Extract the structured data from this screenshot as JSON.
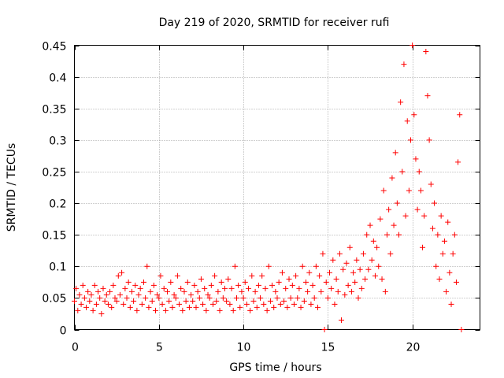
{
  "chart_data": {
    "type": "scatter",
    "title": "Day 219 of 2020, SRMTID for receiver rufi",
    "xlabel": "GPS time / hours",
    "ylabel": "SRMTID / TECUs",
    "xlim": [
      0,
      24
    ],
    "ylim": [
      0,
      0.45
    ],
    "xticks": [
      0,
      5,
      10,
      15,
      20
    ],
    "xtick_labels": [
      "0",
      "5",
      "10",
      "15",
      "20"
    ],
    "yticks": [
      0,
      0.05,
      0.1,
      0.15,
      0.2,
      0.25,
      0.3,
      0.35,
      0.4,
      0.45
    ],
    "ytick_labels": [
      "0",
      "0.05",
      "0.1",
      "0.15",
      "0.2",
      "0.25",
      "0.3",
      "0.35",
      "0.4",
      "0.45"
    ],
    "grid": true,
    "marker": "plus",
    "series": [
      {
        "name": "SRMTID",
        "color": "#ff0000",
        "points": [
          [
            0.0,
            0.045
          ],
          [
            0.1,
            0.065
          ],
          [
            0.2,
            0.03
          ],
          [
            0.3,
            0.055
          ],
          [
            0.4,
            0.04
          ],
          [
            0.5,
            0.07
          ],
          [
            0.6,
            0.05
          ],
          [
            0.7,
            0.035
          ],
          [
            0.8,
            0.06
          ],
          [
            0.9,
            0.045
          ],
          [
            1.0,
            0.055
          ],
          [
            1.1,
            0.03
          ],
          [
            1.2,
            0.07
          ],
          [
            1.3,
            0.04
          ],
          [
            1.4,
            0.06
          ],
          [
            1.5,
            0.05
          ],
          [
            1.6,
            0.025
          ],
          [
            1.7,
            0.065
          ],
          [
            1.8,
            0.045
          ],
          [
            1.9,
            0.055
          ],
          [
            2.0,
            0.04
          ],
          [
            2.1,
            0.06
          ],
          [
            2.2,
            0.035
          ],
          [
            2.3,
            0.07
          ],
          [
            2.4,
            0.05
          ],
          [
            2.5,
            0.045
          ],
          [
            2.6,
            0.085
          ],
          [
            2.7,
            0.055
          ],
          [
            2.8,
            0.09
          ],
          [
            2.9,
            0.04
          ],
          [
            3.0,
            0.065
          ],
          [
            3.1,
            0.05
          ],
          [
            3.2,
            0.075
          ],
          [
            3.3,
            0.035
          ],
          [
            3.4,
            0.06
          ],
          [
            3.5,
            0.045
          ],
          [
            3.6,
            0.07
          ],
          [
            3.7,
            0.03
          ],
          [
            3.8,
            0.055
          ],
          [
            3.9,
            0.065
          ],
          [
            4.0,
            0.04
          ],
          [
            4.1,
            0.075
          ],
          [
            4.2,
            0.05
          ],
          [
            4.3,
            0.1
          ],
          [
            4.4,
            0.035
          ],
          [
            4.5,
            0.06
          ],
          [
            4.6,
            0.045
          ],
          [
            4.7,
            0.07
          ],
          [
            4.8,
            0.03
          ],
          [
            4.9,
            0.055
          ],
          [
            5.0,
            0.05
          ],
          [
            5.1,
            0.085
          ],
          [
            5.2,
            0.04
          ],
          [
            5.3,
            0.065
          ],
          [
            5.4,
            0.03
          ],
          [
            5.5,
            0.06
          ],
          [
            5.6,
            0.045
          ],
          [
            5.7,
            0.075
          ],
          [
            5.8,
            0.035
          ],
          [
            5.9,
            0.055
          ],
          [
            6.0,
            0.05
          ],
          [
            6.1,
            0.085
          ],
          [
            6.2,
            0.04
          ],
          [
            6.3,
            0.065
          ],
          [
            6.4,
            0.03
          ],
          [
            6.5,
            0.06
          ],
          [
            6.6,
            0.045
          ],
          [
            6.7,
            0.075
          ],
          [
            6.8,
            0.035
          ],
          [
            6.9,
            0.055
          ],
          [
            7.0,
            0.045
          ],
          [
            7.1,
            0.07
          ],
          [
            7.2,
            0.035
          ],
          [
            7.3,
            0.06
          ],
          [
            7.4,
            0.05
          ],
          [
            7.5,
            0.08
          ],
          [
            7.6,
            0.04
          ],
          [
            7.7,
            0.065
          ],
          [
            7.8,
            0.03
          ],
          [
            7.9,
            0.055
          ],
          [
            8.0,
            0.05
          ],
          [
            8.1,
            0.07
          ],
          [
            8.2,
            0.04
          ],
          [
            8.3,
            0.085
          ],
          [
            8.4,
            0.045
          ],
          [
            8.5,
            0.06
          ],
          [
            8.6,
            0.03
          ],
          [
            8.7,
            0.075
          ],
          [
            8.8,
            0.05
          ],
          [
            8.9,
            0.065
          ],
          [
            9.0,
            0.045
          ],
          [
            9.1,
            0.08
          ],
          [
            9.2,
            0.04
          ],
          [
            9.3,
            0.065
          ],
          [
            9.4,
            0.03
          ],
          [
            9.5,
            0.1
          ],
          [
            9.6,
            0.05
          ],
          [
            9.7,
            0.07
          ],
          [
            9.8,
            0.035
          ],
          [
            9.9,
            0.06
          ],
          [
            10.0,
            0.05
          ],
          [
            10.1,
            0.075
          ],
          [
            10.2,
            0.04
          ],
          [
            10.3,
            0.065
          ],
          [
            10.4,
            0.03
          ],
          [
            10.5,
            0.085
          ],
          [
            10.6,
            0.045
          ],
          [
            10.7,
            0.06
          ],
          [
            10.8,
            0.035
          ],
          [
            10.9,
            0.07
          ],
          [
            11.0,
            0.05
          ],
          [
            11.1,
            0.085
          ],
          [
            11.2,
            0.04
          ],
          [
            11.3,
            0.065
          ],
          [
            11.4,
            0.03
          ],
          [
            11.5,
            0.1
          ],
          [
            11.6,
            0.045
          ],
          [
            11.7,
            0.07
          ],
          [
            11.8,
            0.035
          ],
          [
            11.9,
            0.06
          ],
          [
            12.0,
            0.05
          ],
          [
            12.1,
            0.075
          ],
          [
            12.2,
            0.04
          ],
          [
            12.3,
            0.09
          ],
          [
            12.4,
            0.045
          ],
          [
            12.5,
            0.065
          ],
          [
            12.6,
            0.035
          ],
          [
            12.7,
            0.08
          ],
          [
            12.8,
            0.05
          ],
          [
            12.9,
            0.07
          ],
          [
            13.0,
            0.04
          ],
          [
            13.1,
            0.085
          ],
          [
            13.2,
            0.05
          ],
          [
            13.3,
            0.065
          ],
          [
            13.4,
            0.035
          ],
          [
            13.5,
            0.1
          ],
          [
            13.6,
            0.045
          ],
          [
            13.7,
            0.075
          ],
          [
            13.8,
            0.06
          ],
          [
            13.9,
            0.09
          ],
          [
            14.0,
            0.04
          ],
          [
            14.1,
            0.07
          ],
          [
            14.2,
            0.05
          ],
          [
            14.3,
            0.1
          ],
          [
            14.4,
            0.035
          ],
          [
            14.5,
            0.085
          ],
          [
            14.6,
            0.06
          ],
          [
            14.7,
            0.12
          ],
          [
            14.8,
            0.0
          ],
          [
            14.9,
            0.075
          ],
          [
            15.0,
            0.05
          ],
          [
            15.1,
            0.09
          ],
          [
            15.2,
            0.065
          ],
          [
            15.3,
            0.11
          ],
          [
            15.4,
            0.04
          ],
          [
            15.5,
            0.08
          ],
          [
            15.6,
            0.06
          ],
          [
            15.7,
            0.12
          ],
          [
            15.8,
            0.015
          ],
          [
            15.9,
            0.095
          ],
          [
            16.0,
            0.055
          ],
          [
            16.1,
            0.105
          ],
          [
            16.2,
            0.07
          ],
          [
            16.3,
            0.13
          ],
          [
            16.4,
            0.06
          ],
          [
            16.5,
            0.09
          ],
          [
            16.6,
            0.075
          ],
          [
            16.7,
            0.11
          ],
          [
            16.8,
            0.05
          ],
          [
            16.9,
            0.095
          ],
          [
            17.0,
            0.065
          ],
          [
            17.1,
            0.12
          ],
          [
            17.2,
            0.08
          ],
          [
            17.3,
            0.15
          ],
          [
            17.4,
            0.095
          ],
          [
            17.5,
            0.165
          ],
          [
            17.6,
            0.11
          ],
          [
            17.7,
            0.14
          ],
          [
            17.8,
            0.085
          ],
          [
            17.9,
            0.13
          ],
          [
            18.0,
            0.1
          ],
          [
            18.1,
            0.175
          ],
          [
            18.2,
            0.08
          ],
          [
            18.3,
            0.22
          ],
          [
            18.4,
            0.06
          ],
          [
            18.5,
            0.15
          ],
          [
            18.6,
            0.19
          ],
          [
            18.7,
            0.12
          ],
          [
            18.8,
            0.24
          ],
          [
            18.9,
            0.165
          ],
          [
            19.0,
            0.28
          ],
          [
            19.1,
            0.2
          ],
          [
            19.2,
            0.15
          ],
          [
            19.3,
            0.36
          ],
          [
            19.4,
            0.25
          ],
          [
            19.5,
            0.42
          ],
          [
            19.6,
            0.18
          ],
          [
            19.7,
            0.33
          ],
          [
            19.8,
            0.22
          ],
          [
            19.9,
            0.3
          ],
          [
            20.0,
            0.45
          ],
          [
            20.1,
            0.34
          ],
          [
            20.2,
            0.27
          ],
          [
            20.3,
            0.19
          ],
          [
            20.4,
            0.25
          ],
          [
            20.5,
            0.22
          ],
          [
            20.6,
            0.13
          ],
          [
            20.7,
            0.18
          ],
          [
            20.8,
            0.44
          ],
          [
            20.9,
            0.37
          ],
          [
            21.0,
            0.3
          ],
          [
            21.1,
            0.23
          ],
          [
            21.2,
            0.16
          ],
          [
            21.3,
            0.2
          ],
          [
            21.4,
            0.1
          ],
          [
            21.5,
            0.15
          ],
          [
            21.6,
            0.08
          ],
          [
            21.7,
            0.18
          ],
          [
            21.8,
            0.12
          ],
          [
            21.9,
            0.14
          ],
          [
            22.0,
            0.06
          ],
          [
            22.1,
            0.17
          ],
          [
            22.2,
            0.09
          ],
          [
            22.3,
            0.04
          ],
          [
            22.4,
            0.12
          ],
          [
            22.5,
            0.15
          ],
          [
            22.6,
            0.075
          ],
          [
            22.7,
            0.265
          ],
          [
            22.8,
            0.34
          ],
          [
            22.9,
            0.0
          ]
        ]
      }
    ]
  }
}
